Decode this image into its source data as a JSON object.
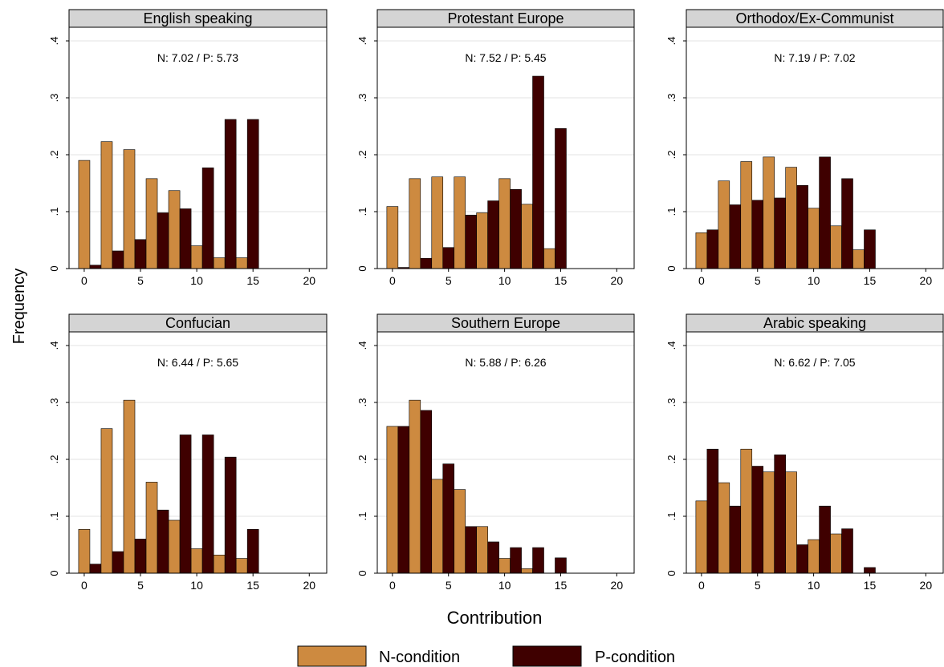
{
  "colors": {
    "n": "#CD8A40",
    "p": "#3F0000",
    "header_bg": "#D4D4D4",
    "grid": "#E3E3E3"
  },
  "ylabel": "Frequency",
  "xlabel": "Contribution",
  "legend": {
    "n_label": "N-condition",
    "p_label": "P-condition"
  },
  "chart_data": [
    {
      "type": "bar",
      "title": "English speaking",
      "annotation": "N: 7.02 / P: 5.73",
      "categories": [
        0,
        2,
        4,
        6,
        8,
        10,
        12,
        14,
        16,
        18,
        20
      ],
      "ylim": [
        0,
        0.4
      ],
      "y_ticks": [
        0,
        0.1,
        0.2,
        0.3,
        0.4
      ],
      "y_tick_labels": [
        "0",
        ".1",
        ".2",
        ".3",
        ".4"
      ],
      "x_ticks": [
        0,
        5,
        10,
        15,
        20
      ],
      "series": [
        {
          "name": "N-condition",
          "values": [
            0.19,
            0.223,
            0.209,
            0.158,
            0.137,
            0.04,
            0.019,
            0.019,
            0,
            0,
            0
          ]
        },
        {
          "name": "P-condition",
          "values": [
            0.006,
            0.031,
            0.051,
            0.098,
            0.105,
            0.177,
            0.262,
            0.262,
            0,
            0,
            0
          ]
        }
      ]
    },
    {
      "type": "bar",
      "title": "Protestant Europe",
      "annotation": "N: 7.52 / P: 5.45",
      "categories": [
        0,
        2,
        4,
        6,
        8,
        10,
        12,
        14,
        16,
        18,
        20
      ],
      "ylim": [
        0,
        0.4
      ],
      "y_ticks": [
        0,
        0.1,
        0.2,
        0.3,
        0.4
      ],
      "y_tick_labels": [
        "0",
        ".1",
        ".2",
        ".3",
        ".4"
      ],
      "x_ticks": [
        0,
        5,
        10,
        15,
        20
      ],
      "series": [
        {
          "name": "N-condition",
          "values": [
            0.109,
            0.158,
            0.161,
            0.161,
            0.098,
            0.158,
            0.113,
            0.035,
            0,
            0,
            0
          ]
        },
        {
          "name": "P-condition",
          "values": [
            0.002,
            0.018,
            0.037,
            0.094,
            0.119,
            0.139,
            0.338,
            0.246,
            0,
            0,
            0
          ]
        }
      ]
    },
    {
      "type": "bar",
      "title": "Orthodox/Ex-Communist",
      "annotation": "N: 7.19 / P: 7.02",
      "categories": [
        0,
        2,
        4,
        6,
        8,
        10,
        12,
        14,
        16,
        18,
        20
      ],
      "ylim": [
        0,
        0.4
      ],
      "y_ticks": [
        0,
        0.1,
        0.2,
        0.3,
        0.4
      ],
      "y_tick_labels": [
        "0",
        ".1",
        ".2",
        ".3",
        ".4"
      ],
      "x_ticks": [
        0,
        5,
        10,
        15,
        20
      ],
      "series": [
        {
          "name": "N-condition",
          "values": [
            0.063,
            0.154,
            0.188,
            0.196,
            0.178,
            0.106,
            0.075,
            0.033,
            0,
            0,
            0
          ]
        },
        {
          "name": "P-condition",
          "values": [
            0.068,
            0.112,
            0.12,
            0.124,
            0.146,
            0.196,
            0.158,
            0.068,
            0,
            0,
            0
          ]
        }
      ]
    },
    {
      "type": "bar",
      "title": "Confucian",
      "annotation": "N: 6.44 / P: 5.65",
      "categories": [
        0,
        2,
        4,
        6,
        8,
        10,
        12,
        14,
        16,
        18,
        20
      ],
      "ylim": [
        0,
        0.4
      ],
      "y_ticks": [
        0,
        0.1,
        0.2,
        0.3,
        0.4
      ],
      "y_tick_labels": [
        "0",
        ".1",
        ".2",
        ".3",
        ".4"
      ],
      "x_ticks": [
        0,
        5,
        10,
        15,
        20
      ],
      "series": [
        {
          "name": "N-condition",
          "values": [
            0.077,
            0.254,
            0.304,
            0.16,
            0.093,
            0.043,
            0.032,
            0.026,
            0,
            0,
            0
          ]
        },
        {
          "name": "P-condition",
          "values": [
            0.016,
            0.038,
            0.06,
            0.111,
            0.243,
            0.243,
            0.204,
            0.077,
            0,
            0,
            0
          ]
        }
      ]
    },
    {
      "type": "bar",
      "title": "Southern Europe",
      "annotation": "N: 5.88 / P: 6.26",
      "categories": [
        0,
        2,
        4,
        6,
        8,
        10,
        12,
        14,
        16,
        18,
        20
      ],
      "ylim": [
        0,
        0.4
      ],
      "y_ticks": [
        0,
        0.1,
        0.2,
        0.3,
        0.4
      ],
      "y_tick_labels": [
        "0",
        ".1",
        ".2",
        ".3",
        ".4"
      ],
      "x_ticks": [
        0,
        5,
        10,
        15,
        20
      ],
      "series": [
        {
          "name": "N-condition",
          "values": [
            0.258,
            0.304,
            0.165,
            0.147,
            0.082,
            0.026,
            0.008,
            0,
            0,
            0,
            0
          ]
        },
        {
          "name": "P-condition",
          "values": [
            0.258,
            0.286,
            0.192,
            0.082,
            0.055,
            0.045,
            0.045,
            0.027,
            0,
            0,
            0
          ]
        }
      ]
    },
    {
      "type": "bar",
      "title": "Arabic speaking",
      "annotation": "N: 6.62 / P: 7.05",
      "categories": [
        0,
        2,
        4,
        6,
        8,
        10,
        12,
        14,
        16,
        18,
        20
      ],
      "ylim": [
        0,
        0.4
      ],
      "y_ticks": [
        0,
        0.1,
        0.2,
        0.3,
        0.4
      ],
      "y_tick_labels": [
        "0",
        ".1",
        ".2",
        ".3",
        ".4"
      ],
      "x_ticks": [
        0,
        5,
        10,
        15,
        20
      ],
      "series": [
        {
          "name": "N-condition",
          "values": [
            0.127,
            0.159,
            0.218,
            0.178,
            0.178,
            0.059,
            0.069,
            0,
            0,
            0,
            0
          ]
        },
        {
          "name": "P-condition",
          "values": [
            0.218,
            0.118,
            0.188,
            0.208,
            0.05,
            0.118,
            0.078,
            0.01,
            0,
            0,
            0
          ]
        }
      ]
    }
  ]
}
